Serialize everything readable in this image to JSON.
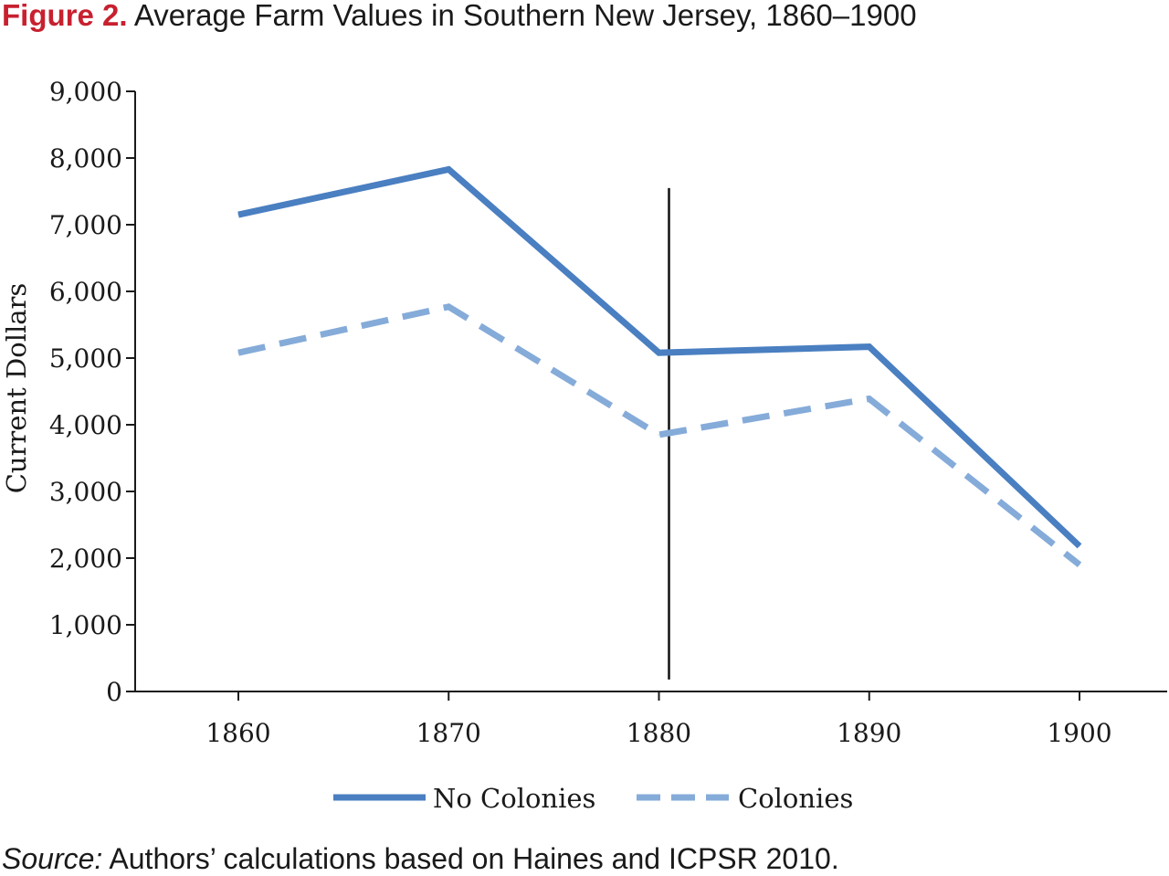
{
  "figure": {
    "label": "Figure 2.",
    "title": "Average Farm Values in Southern New Jersey, 1860–1900"
  },
  "source": {
    "label": "Source:",
    "text": "Authors’ calculations based on Haines and ICPSR 2010."
  },
  "colors": {
    "figure_label": "#c8202f",
    "no_colonies": "#4a7fc1",
    "colonies": "#85abd9",
    "axis": "#1a1a1a"
  },
  "chart_data": {
    "type": "line",
    "title": "Average Farm Values in Southern New Jersey, 1860–1900",
    "xlabel": "",
    "ylabel": "Current Dollars",
    "x": [
      1860,
      1870,
      1880,
      1890,
      1900
    ],
    "x_tick_labels": [
      "1860",
      "1870",
      "1880",
      "1890",
      "1900"
    ],
    "ylim": [
      0,
      9000
    ],
    "y_ticks": [
      0,
      1000,
      2000,
      3000,
      4000,
      5000,
      6000,
      7000,
      8000,
      9000
    ],
    "y_tick_labels": [
      "0",
      "1,000",
      "2,000",
      "3,000",
      "4,000",
      "5,000",
      "6,000",
      "7,000",
      "8,000",
      "9,000"
    ],
    "series": [
      {
        "name": "No Colonies",
        "style": "solid",
        "values": [
          7150,
          7830,
          5080,
          5170,
          2180
        ]
      },
      {
        "name": "Colonies",
        "style": "dashed",
        "values": [
          5080,
          5770,
          3850,
          4390,
          1900
        ]
      }
    ],
    "reference_line": {
      "x": 1880,
      "y_range": [
        180,
        7550
      ]
    },
    "grid": false,
    "legend_position": "bottom-center"
  }
}
